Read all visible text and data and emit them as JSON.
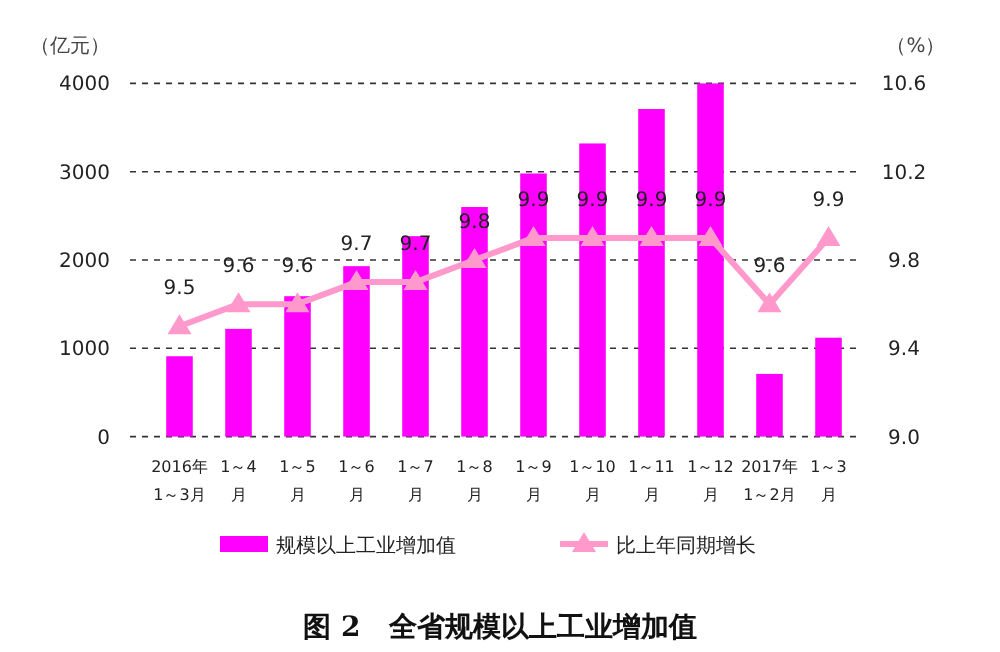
{
  "chart_data": {
    "type": "bar",
    "title": "图 2　全省规模以上工业增加值",
    "ylabel": "（亿元）",
    "y2label": "（%）",
    "categories": [
      "2016年\n1～3月",
      "1～4\n月",
      "1～5\n月",
      "1～6\n月",
      "1～7\n月",
      "1～8\n月",
      "1～9\n月",
      "1～10\n月",
      "1～11\n月",
      "1～12\n月",
      "2017年\n1～2月",
      "1～3\n月"
    ],
    "series": [
      {
        "name": "规模以上工业增加值",
        "color": "#ff00ff",
        "values": [
          910,
          1220,
          1590,
          1930,
          2270,
          2600,
          2980,
          3320,
          3710,
          4000,
          710,
          1120
        ]
      },
      {
        "name": "比上年同期增长",
        "type": "line",
        "axis": "y2",
        "color": "#ff99cc",
        "marker": "triangle",
        "data_labels": true,
        "values": [
          9.5,
          9.6,
          9.6,
          9.7,
          9.7,
          9.8,
          9.9,
          9.9,
          9.9,
          9.9,
          9.6,
          9.9
        ]
      }
    ],
    "ylim": [
      0,
      4000
    ],
    "yticks": [
      0,
      1000,
      2000,
      3000,
      4000
    ],
    "y2lim": [
      9.0,
      10.6
    ],
    "y2ticks": [
      {
        "value": 9.0,
        "label": "9.0"
      },
      9.4,
      9.8,
      10.2,
      10.6
    ],
    "grid": "y",
    "legend": "bottom"
  }
}
